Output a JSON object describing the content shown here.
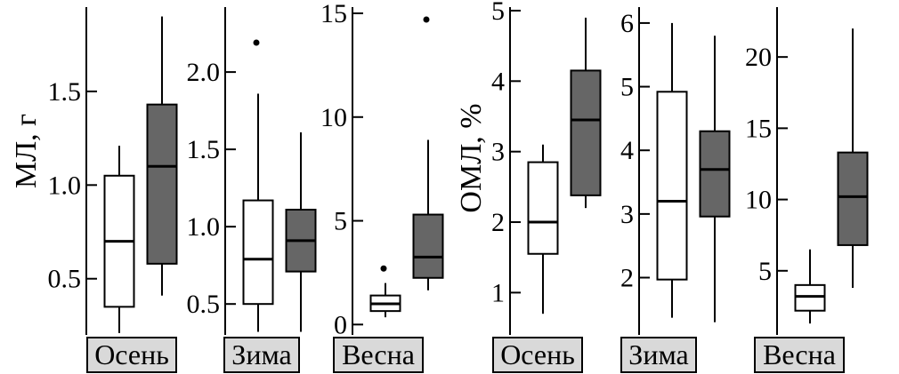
{
  "chart_data": {
    "type": "boxplot",
    "groups": [
      {
        "ylabel": "МЛ, г",
        "panels": [
          {
            "season": "Осень",
            "ylim": [
              0.2,
              1.95
            ],
            "ticks": [
              "0.5",
              "1.0",
              "1.5"
            ],
            "boxes": [
              {
                "fill": "#ffffff",
                "whisker_low": 0.21,
                "q1": 0.35,
                "median": 0.7,
                "q3": 1.05,
                "whisker_high": 1.21,
                "outliers": []
              },
              {
                "fill": "#666666",
                "whisker_low": 0.41,
                "q1": 0.58,
                "median": 1.1,
                "q3": 1.43,
                "whisker_high": 1.9,
                "outliers": []
              }
            ]
          },
          {
            "season": "Зима",
            "ylim": [
              0.3,
              2.42
            ],
            "ticks": [
              "0.5",
              "1.0",
              "1.5",
              "2.0"
            ],
            "boxes": [
              {
                "fill": "#ffffff",
                "whisker_low": 0.32,
                "q1": 0.5,
                "median": 0.79,
                "q3": 1.17,
                "whisker_high": 1.86,
                "outliers": [
                  2.19
                ]
              },
              {
                "fill": "#666666",
                "whisker_low": 0.32,
                "q1": 0.71,
                "median": 0.91,
                "q3": 1.11,
                "whisker_high": 1.61,
                "outliers": []
              }
            ]
          },
          {
            "season": "Весна",
            "ylim": [
              -0.5,
              15.3
            ],
            "ticks": [
              "0",
              "5",
              "10",
              "15"
            ],
            "boxes": [
              {
                "fill": "#ffffff",
                "whisker_low": 0.35,
                "q1": 0.65,
                "median": 1.0,
                "q3": 1.4,
                "whisker_high": 2.0,
                "outliers": [
                  2.7
                ]
              },
              {
                "fill": "#666666",
                "whisker_low": 1.65,
                "q1": 2.25,
                "median": 3.25,
                "q3": 5.3,
                "whisker_high": 8.9,
                "outliers": [
                  14.7
                ]
              }
            ]
          }
        ]
      },
      {
        "ylabel": "ОМЛ, %",
        "panels": [
          {
            "season": "Осень",
            "ylim": [
              0.4,
              5.05
            ],
            "ticks": [
              "1",
              "2",
              "3",
              "4",
              "5"
            ],
            "boxes": [
              {
                "fill": "#ffffff",
                "whisker_low": 0.7,
                "q1": 1.55,
                "median": 2.0,
                "q3": 2.85,
                "whisker_high": 3.1,
                "outliers": []
              },
              {
                "fill": "#666666",
                "whisker_low": 2.2,
                "q1": 2.38,
                "median": 3.45,
                "q3": 4.15,
                "whisker_high": 4.9,
                "outliers": []
              }
            ]
          },
          {
            "season": "Зима",
            "ylim": [
              1.1,
              6.25
            ],
            "ticks": [
              "2",
              "3",
              "4",
              "5",
              "6"
            ],
            "boxes": [
              {
                "fill": "#ffffff",
                "whisker_low": 1.37,
                "q1": 1.97,
                "median": 3.2,
                "q3": 4.92,
                "whisker_high": 6.0,
                "outliers": []
              },
              {
                "fill": "#666666",
                "whisker_low": 1.3,
                "q1": 2.96,
                "median": 3.7,
                "q3": 4.3,
                "whisker_high": 5.8,
                "outliers": []
              }
            ]
          },
          {
            "season": "Весна",
            "ylim": [
              0.5,
              23.5
            ],
            "ticks": [
              "5",
              "10",
              "15",
              "20"
            ],
            "boxes": [
              {
                "fill": "#ffffff",
                "whisker_low": 1.3,
                "q1": 2.2,
                "median": 3.2,
                "q3": 4.0,
                "whisker_high": 6.5,
                "outliers": []
              },
              {
                "fill": "#666666",
                "whisker_low": 3.8,
                "q1": 6.8,
                "median": 10.2,
                "q3": 13.3,
                "whisker_high": 22.0,
                "outliers": []
              }
            ]
          }
        ]
      }
    ]
  }
}
